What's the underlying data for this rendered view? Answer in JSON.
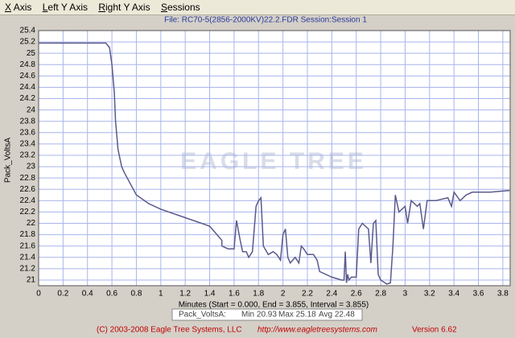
{
  "menu": [
    "X Axis",
    "Left Y Axis",
    "Right Y Axis",
    "Sessions"
  ],
  "chart_data": {
    "type": "line",
    "title": "File: RC70-5(2856-2000KV)22.2.FDR   Session:Session 1",
    "watermark": "EAGLE TREE",
    "y_label": "Pack_VoltsA",
    "x_label": "Minutes (Start = 0.000, End = 3.855, Interval = 3.855)",
    "x": [
      0,
      0.55,
      0.58,
      0.6,
      0.62,
      0.63,
      0.65,
      0.68,
      0.7,
      0.75,
      0.8,
      0.9,
      1.0,
      1.2,
      1.4,
      1.5,
      1.5,
      1.55,
      1.6,
      1.62,
      1.65,
      1.67,
      1.7,
      1.72,
      1.75,
      1.78,
      1.8,
      1.82,
      1.84,
      1.88,
      1.92,
      1.95,
      1.98,
      2.0,
      2.02,
      2.04,
      2.06,
      2.1,
      2.13,
      2.15,
      2.17,
      2.2,
      2.25,
      2.28,
      2.3,
      2.4,
      2.48,
      2.5,
      2.51,
      2.52,
      2.53,
      2.54,
      2.56,
      2.6,
      2.62,
      2.65,
      2.7,
      2.72,
      2.74,
      2.76,
      2.78,
      2.8,
      2.85,
      2.88,
      2.9,
      2.92,
      2.95,
      3.0,
      3.02,
      3.05,
      3.1,
      3.12,
      3.15,
      3.18,
      3.25,
      3.35,
      3.38,
      3.4,
      3.45,
      3.5,
      3.55,
      3.6,
      3.7,
      3.8,
      3.855
    ],
    "series": [
      {
        "color": "#5a5a8c",
        "values": [
          25.18,
          25.18,
          25.1,
          24.8,
          24.3,
          23.8,
          23.3,
          23.0,
          22.9,
          22.7,
          22.5,
          22.35,
          22.25,
          22.1,
          21.95,
          21.7,
          21.6,
          21.55,
          21.55,
          22.05,
          21.7,
          21.5,
          21.5,
          21.4,
          21.5,
          22.3,
          22.4,
          22.45,
          21.6,
          21.45,
          21.5,
          21.45,
          21.35,
          21.8,
          21.9,
          21.4,
          21.3,
          21.4,
          21.3,
          21.6,
          21.55,
          21.45,
          21.45,
          21.35,
          21.15,
          21.05,
          21.0,
          21.0,
          21.5,
          20.95,
          21.1,
          21.0,
          21.05,
          21.05,
          21.9,
          22.0,
          21.9,
          21.3,
          22.0,
          22.05,
          21.1,
          21.0,
          20.93,
          20.95,
          21.6,
          22.5,
          22.2,
          22.3,
          22.0,
          22.4,
          22.3,
          22.35,
          21.9,
          22.4,
          22.4,
          22.45,
          22.3,
          22.55,
          22.4,
          22.5,
          22.55,
          22.55,
          22.55,
          22.57,
          22.58
        ]
      }
    ],
    "xlim": [
      0,
      3.86
    ],
    "ylim": [
      20.9,
      25.4
    ],
    "xticks": [
      0,
      0.2,
      0.4,
      0.6,
      0.8,
      1,
      1.2,
      1.4,
      1.6,
      1.8,
      2,
      2.2,
      2.4,
      2.6,
      2.8,
      3,
      3.2,
      3.4,
      3.6,
      3.8
    ],
    "yticks": [
      21,
      21.2,
      21.4,
      21.6,
      21.8,
      22,
      22.2,
      22.4,
      22.6,
      22.8,
      23,
      23.2,
      23.4,
      23.6,
      23.8,
      24,
      24.2,
      24.4,
      24.6,
      24.8,
      25,
      25.2,
      25.4
    ],
    "grid": true
  },
  "stats": [
    "Pack_VoltsA:",
    "Min 20.93",
    "Max 25.18",
    "Avg 22.48"
  ],
  "footer": [
    "(C) 2003-2008 Eagle Tree Systems, LLC",
    "http://www.eagletreesystems.com",
    "Version 6.62"
  ]
}
